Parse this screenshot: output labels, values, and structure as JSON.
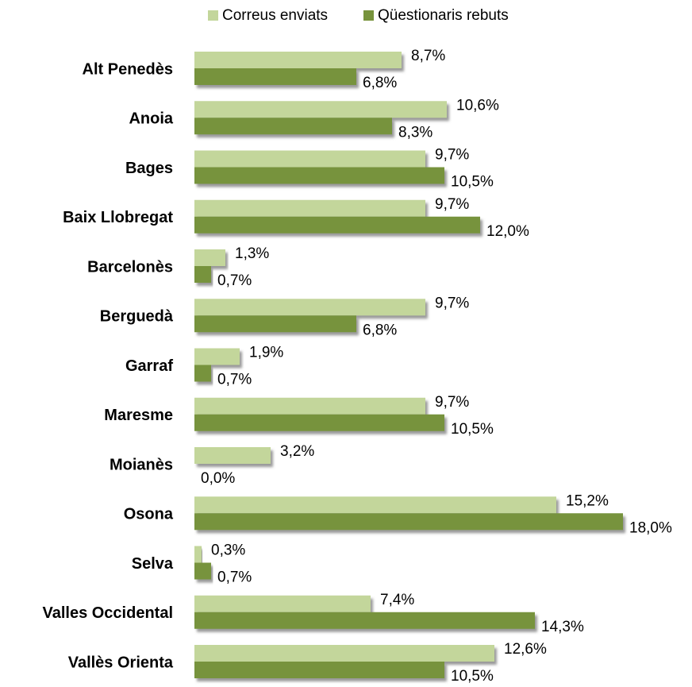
{
  "chart_data": {
    "type": "bar",
    "orientation": "horizontal",
    "categories": [
      "Alt Penedès",
      "Anoia",
      "Bages",
      "Baix Llobregat",
      "Barcelonès",
      "Berguedà",
      "Garraf",
      "Maresme",
      "Moianès",
      "Osona",
      "Selva",
      "Valles Occidental",
      "Vallès Orienta"
    ],
    "series": [
      {
        "name": "Correus enviats",
        "color": "#c3d69b",
        "values": [
          8.7,
          10.6,
          9.7,
          9.7,
          1.3,
          9.7,
          1.9,
          9.7,
          3.2,
          15.2,
          0.3,
          7.4,
          12.6
        ],
        "value_labels": [
          "8,7%",
          "10,6%",
          "9,7%",
          "9,7%",
          "1,3%",
          "9,7%",
          "1,9%",
          "9,7%",
          "3,2%",
          "15,2%",
          "0,3%",
          "7,4%",
          "12,6%"
        ]
      },
      {
        "name": "Qüestionaris rebuts",
        "color": "#77933c",
        "values": [
          6.8,
          8.3,
          10.5,
          12.0,
          0.7,
          6.8,
          0.7,
          10.5,
          0.0,
          18.0,
          0.7,
          14.3,
          10.5
        ],
        "value_labels": [
          "6,8%",
          "8,3%",
          "10,5%",
          "12,0%",
          "0,7%",
          "6,8%",
          "0,7%",
          "10,5%",
          "0,0%",
          "18,0%",
          "0,7%",
          "14,3%",
          "10,5%"
        ]
      }
    ],
    "legend": "top"
  }
}
